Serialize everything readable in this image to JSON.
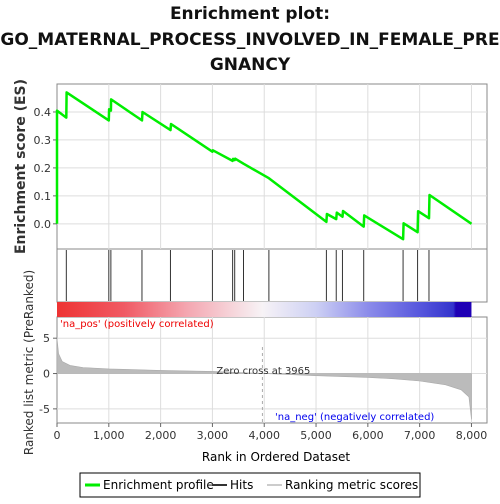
{
  "chart_data": {
    "type": "line",
    "title_lines": [
      "Enrichment plot:",
      "GO_MATERNAL_PROCESS_INVOLVED_IN_FEMALE_PRE",
      "GNANCY"
    ],
    "xlabel": "Rank in Ordered Dataset",
    "xlim": [
      0,
      8300
    ],
    "x_ticks": [
      0,
      1000,
      2000,
      3000,
      4000,
      5000,
      6000,
      7000,
      8000
    ],
    "x_tick_labels": [
      "0",
      "1,000",
      "2,000",
      "3,000",
      "4,000",
      "5,000",
      "6,000",
      "7,000",
      "8,000"
    ],
    "es_panel": {
      "ylabel": "Enrichment score (ES)",
      "ylim": [
        -0.09,
        0.5
      ],
      "y_ticks": [
        0.0,
        0.1,
        0.2,
        0.3,
        0.4
      ],
      "y_tick_labels": [
        "0.0",
        "0.1",
        "0.2",
        "0.3",
        "0.4"
      ],
      "series_color": "#00ee00",
      "curve": [
        [
          0,
          0.0
        ],
        [
          0,
          0.405
        ],
        [
          180,
          0.38
        ],
        [
          185,
          0.47
        ],
        [
          1000,
          0.37
        ],
        [
          1005,
          0.41
        ],
        [
          1040,
          0.405
        ],
        [
          1045,
          0.445
        ],
        [
          1640,
          0.37
        ],
        [
          1650,
          0.4
        ],
        [
          2190,
          0.335
        ],
        [
          2200,
          0.357
        ],
        [
          3000,
          0.258
        ],
        [
          3010,
          0.263
        ],
        [
          3390,
          0.225
        ],
        [
          3400,
          0.232
        ],
        [
          3430,
          0.228
        ],
        [
          3440,
          0.233
        ],
        [
          3600,
          0.215
        ],
        [
          4090,
          0.163
        ],
        [
          5200,
          0.007
        ],
        [
          5210,
          0.035
        ],
        [
          5390,
          0.017
        ],
        [
          5400,
          0.04
        ],
        [
          5510,
          0.025
        ],
        [
          5520,
          0.046
        ],
        [
          5920,
          -0.01
        ],
        [
          5930,
          0.03
        ],
        [
          6680,
          -0.055
        ],
        [
          6690,
          0.002
        ],
        [
          6960,
          -0.03
        ],
        [
          6970,
          0.045
        ],
        [
          7180,
          0.02
        ],
        [
          7190,
          0.103
        ],
        [
          8000,
          0.0
        ]
      ]
    },
    "hits": [
      180,
      1000,
      1040,
      1640,
      2190,
      3000,
      3390,
      3430,
      3600,
      4090,
      5200,
      5390,
      5510,
      5920,
      6680,
      6960,
      7180
    ],
    "gradient_bar": {
      "stops": [
        {
          "rank": 0,
          "color": "#ee3333"
        },
        {
          "rank": 1300,
          "color": "#f05a64"
        },
        {
          "rank": 2500,
          "color": "#f4a6b0"
        },
        {
          "rank": 3965,
          "color": "#f7f3f6"
        },
        {
          "rank": 5000,
          "color": "#cdd0f4"
        },
        {
          "rank": 6000,
          "color": "#8c8cea"
        },
        {
          "rank": 7000,
          "color": "#5757dd"
        },
        {
          "rank": 7650,
          "color": "#3333cc"
        },
        {
          "rank": 7700,
          "color": "#1f00b5"
        },
        {
          "rank": 8000,
          "color": "#1f00b5"
        }
      ]
    },
    "metric_panel": {
      "ylabel": "Ranked list metric (PreRanked)",
      "ylim": [
        -7,
        8
      ],
      "y_ticks": [
        -5,
        0,
        5
      ],
      "y_tick_labels": [
        "-5",
        "0",
        "5"
      ],
      "fill_color": "#bbbbbb",
      "profile": [
        [
          0,
          5.0
        ],
        [
          30,
          2.8
        ],
        [
          100,
          1.7
        ],
        [
          250,
          1.15
        ],
        [
          500,
          0.85
        ],
        [
          1000,
          0.65
        ],
        [
          2000,
          0.45
        ],
        [
          3000,
          0.3
        ],
        [
          3965,
          0.0
        ],
        [
          5000,
          -0.3
        ],
        [
          6000,
          -0.55
        ],
        [
          6500,
          -0.75
        ],
        [
          7000,
          -1.05
        ],
        [
          7500,
          -1.6
        ],
        [
          7800,
          -2.3
        ],
        [
          7950,
          -3.3
        ],
        [
          8000,
          -6.5
        ]
      ],
      "zero_cross_label": "Zero cross at 3965",
      "zero_cross_rank": 3965,
      "pos_label": "'na_pos' (positively correlated)",
      "neg_label": "'na_neg' (negatively correlated)",
      "pos_color": "#ee0000",
      "neg_color": "#0000ee"
    },
    "legend": {
      "placement": "bottom",
      "items": [
        {
          "label": "Enrichment profile",
          "color": "#00ee00",
          "kind": "line"
        },
        {
          "label": "Hits",
          "color": "#333333",
          "kind": "line"
        },
        {
          "label": "Ranking metric scores",
          "color": "#cccccc",
          "kind": "line"
        }
      ]
    }
  }
}
